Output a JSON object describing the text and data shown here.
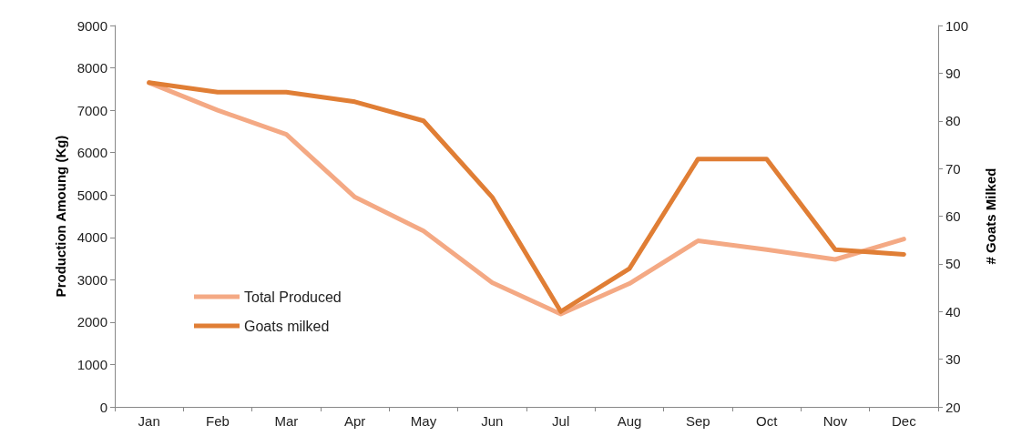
{
  "chart_data": {
    "type": "line",
    "categories": [
      "Jan",
      "Feb",
      "Mar",
      "Apr",
      "May",
      "Jun",
      "Jul",
      "Aug",
      "Sep",
      "Oct",
      "Nov",
      "Dec"
    ],
    "series": [
      {
        "name": "Total Produced",
        "color": "#f4a984",
        "values": [
          7650,
          7000,
          6430,
          4950,
          4150,
          2930,
          2190,
          2910,
          3920,
          3710,
          3480,
          3960
        ]
      },
      {
        "name": "Goats milked",
        "color": "#e07e35",
        "axis": "y2",
        "values": [
          88,
          86,
          86,
          84,
          80,
          64,
          40,
          49,
          72,
          72,
          53,
          52
        ]
      }
    ],
    "ylabel": "Production Amoung (Kg)",
    "y2label": "# Goats Milked",
    "ylim": [
      0,
      9000
    ],
    "yticks": [
      0,
      1000,
      2000,
      3000,
      4000,
      5000,
      6000,
      7000,
      8000,
      9000
    ],
    "y2lim": [
      20,
      100
    ],
    "y2ticks": [
      20,
      30,
      40,
      50,
      60,
      70,
      80,
      90,
      100
    ],
    "grid": false,
    "legend": "left",
    "marker": "none",
    "line_style": "solid"
  }
}
